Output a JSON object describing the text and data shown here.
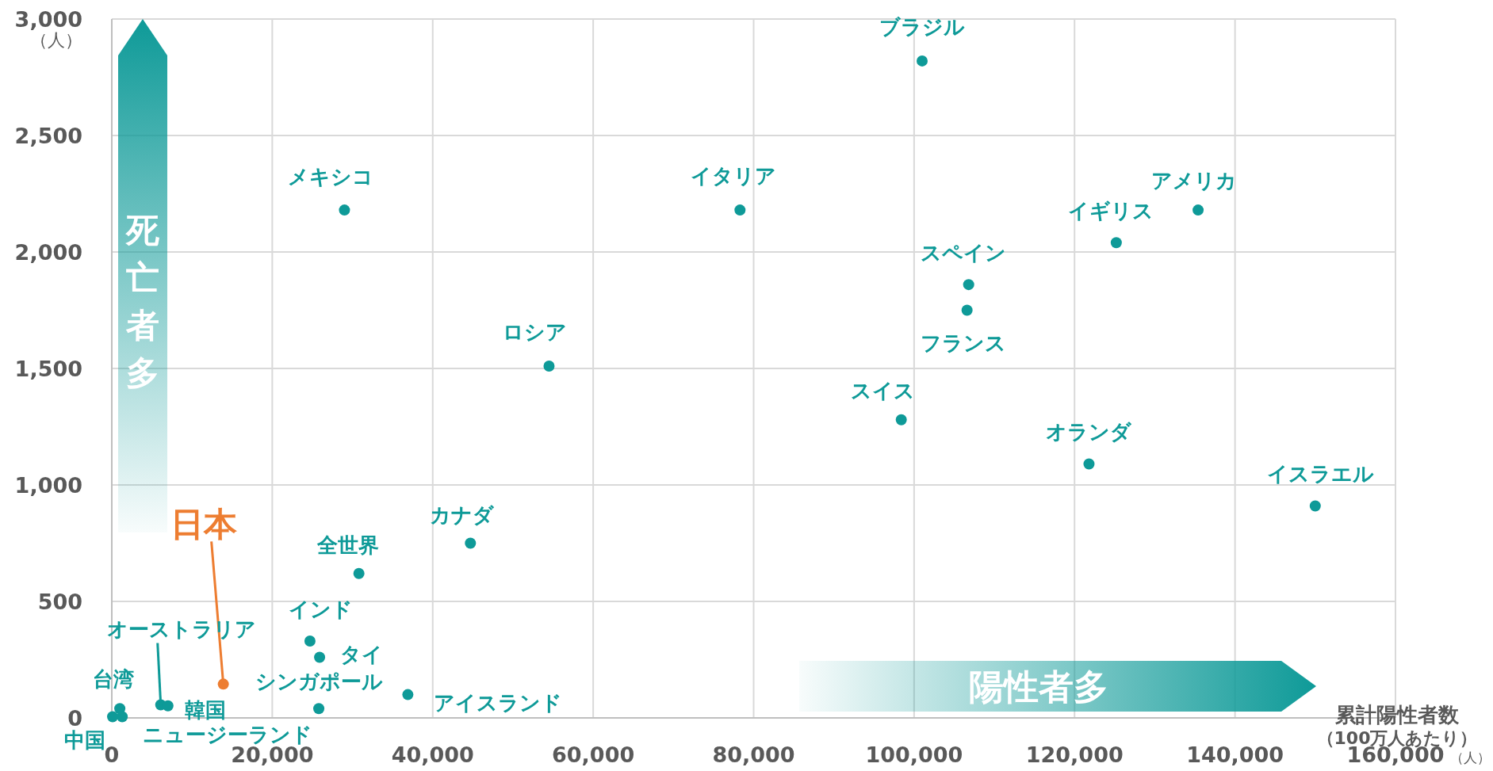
{
  "chart_data": {
    "type": "scatter",
    "xlabel": "累計陽性者数",
    "ylabel": "（人）",
    "x": [
      101000,
      29000,
      78300,
      135400,
      125200,
      106800,
      106600,
      54500,
      98400,
      121800,
      150000,
      44700,
      30800,
      24700,
      25900,
      25800,
      36900,
      13900,
      6100,
      7000,
      1000,
      100,
      1300
    ],
    "values": [
      2820,
      2180,
      2180,
      2180,
      2040,
      1860,
      1750,
      1510,
      1280,
      1090,
      910,
      750,
      620,
      330,
      260,
      40,
      100,
      145,
      56,
      52,
      40,
      5,
      5
    ],
    "colors": [
      "#0e9a98",
      "#0e9a98",
      "#0e9a98",
      "#0e9a98",
      "#0e9a98",
      "#0e9a98",
      "#0e9a98",
      "#0e9a98",
      "#0e9a98",
      "#0e9a98",
      "#0e9a98",
      "#0e9a98",
      "#0e9a98",
      "#0e9a98",
      "#0e9a98",
      "#0e9a98",
      "#0e9a98",
      "#ed7d31",
      "#0e9a98",
      "#0e9a98",
      "#0e9a98",
      "#0e9a98",
      "#0e9a98"
    ],
    "xlim": [
      0,
      160000
    ],
    "ylim": [
      0,
      3000
    ],
    "xticks": [
      0,
      {
        "value": 20000,
        "label": "20,000"
      },
      {
        "value": 40000,
        "label": "40,000"
      },
      {
        "value": 60000,
        "label": "60,000"
      },
      {
        "value": 80000,
        "label": "80,000"
      },
      {
        "value": 100000,
        "label": "100,000"
      },
      {
        "value": 120000,
        "label": "120,000"
      },
      {
        "value": 140000,
        "label": "140,000"
      },
      {
        "value": 160000,
        "label": "160,000"
      }
    ],
    "yticks": [
      0,
      500,
      {
        "value": 1000,
        "label": "1,000"
      },
      {
        "value": 1500,
        "label": "1,500"
      },
      {
        "value": 2000,
        "label": "2,000"
      },
      {
        "value": 2500,
        "label": "2,500"
      },
      {
        "value": 3000,
        "label": "3,000"
      }
    ],
    "grid": true,
    "marker": "circle",
    "annotations": [
      {
        "text": "ブラジル",
        "x": 101000,
        "y": 2820
      },
      {
        "text": "メキシコ",
        "x": 29000,
        "y": 2180
      },
      {
        "text": "イタリア",
        "x": 78300,
        "y": 2180
      },
      {
        "text": "アメリカ",
        "x": 135400,
        "y": 2180
      },
      {
        "text": "イギリス",
        "x": 125200,
        "y": 2040
      },
      {
        "text": "スペイン",
        "x": 106800,
        "y": 1860
      },
      {
        "text": "フランス",
        "x": 106600,
        "y": 1750
      },
      {
        "text": "ロシア",
        "x": 54500,
        "y": 1510
      },
      {
        "text": "スイス",
        "x": 98400,
        "y": 1280
      },
      {
        "text": "オランダ",
        "x": 121800,
        "y": 1090
      },
      {
        "text": "イスラエル",
        "x": 150000,
        "y": 910
      },
      {
        "text": "カナダ",
        "x": 44700,
        "y": 750
      },
      {
        "text": "全世界",
        "x": 30800,
        "y": 620
      },
      {
        "text": "インド",
        "x": 24700,
        "y": 330
      },
      {
        "text": "タイ",
        "x": 25900,
        "y": 260
      },
      {
        "text": "シンガポール",
        "x": 25800,
        "y": 40
      },
      {
        "text": "アイスランド",
        "x": 36900,
        "y": 100
      },
      {
        "text": "日本",
        "x": 13900,
        "y": 145
      },
      {
        "text": "オーストラリア",
        "x": 6100,
        "y": 56
      },
      {
        "text": "韓国",
        "x": 7000,
        "y": 52
      },
      {
        "text": "台湾",
        "x": 1000,
        "y": 40
      },
      {
        "text": "中国",
        "x": 100,
        "y": 5
      },
      {
        "text": "ニュージーランド",
        "x": 1300,
        "y": 5
      },
      "死亡者多",
      "陽性者多",
      "（100万人あたり）",
      "（人）"
    ]
  }
}
